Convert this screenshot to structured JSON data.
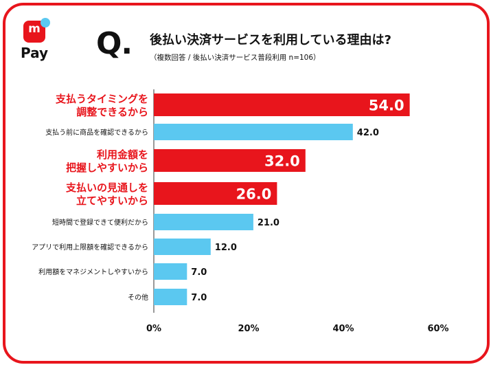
{
  "header": {
    "logo_mark": "m",
    "logo_text": "Pay",
    "q_mark": "Q.",
    "title": "後払い決済サービスを利用している理由は?",
    "subtitle": "（複数回答 / 後払い決済サービス普段利用 n=106）"
  },
  "colors": {
    "highlight": "#e8151c",
    "normal": "#5bc8f0",
    "text": "#111111",
    "highlight_label": "#e8151c"
  },
  "chart_data": {
    "type": "bar",
    "orientation": "horizontal",
    "title": "後払い決済サービスを利用している理由は?",
    "xlim": [
      0,
      60
    ],
    "x_ticks": [
      "0%",
      "20%",
      "40%",
      "60%"
    ],
    "grid": false,
    "categories": [
      {
        "label_lines": [
          "支払うタイミングを",
          "調整できるから"
        ],
        "value": 54.0,
        "value_label": "54.0",
        "highlight": true
      },
      {
        "label_lines": [
          "支払う前に商品を確認できるから"
        ],
        "value": 42.0,
        "value_label": "42.0",
        "highlight": false
      },
      {
        "label_lines": [
          "利用金額を",
          "把握しやすいから"
        ],
        "value": 32.0,
        "value_label": "32.0",
        "highlight": true
      },
      {
        "label_lines": [
          "支払いの見通しを",
          "立てやすいから"
        ],
        "value": 26.0,
        "value_label": "26.0",
        "highlight": true
      },
      {
        "label_lines": [
          "短時間で登録できて便利だから"
        ],
        "value": 21.0,
        "value_label": "21.0",
        "highlight": false
      },
      {
        "label_lines": [
          "アプリで利用上限額を確認できるから"
        ],
        "value": 12.0,
        "value_label": "12.0",
        "highlight": false
      },
      {
        "label_lines": [
          "利用額をマネジメントしやすいから"
        ],
        "value": 7.0,
        "value_label": "7.0",
        "highlight": false
      },
      {
        "label_lines": [
          "その他"
        ],
        "value": 7.0,
        "value_label": "7.0",
        "highlight": false
      }
    ]
  }
}
